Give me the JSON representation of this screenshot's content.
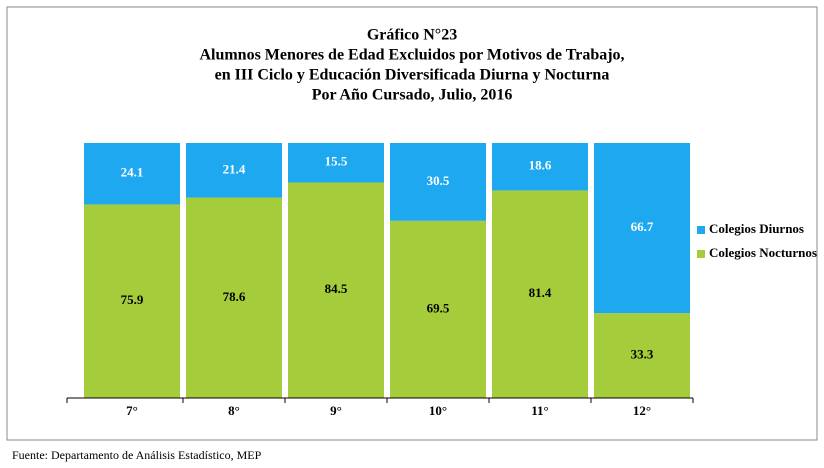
{
  "chart_data": {
    "type": "stacked_bar",
    "title": [
      "Gráfico N°23",
      "Alumnos Menores de Edad Excluidos por Motivos de Trabajo,",
      "en III Ciclo y Educación Diversificada Diurna y Nocturna",
      "Por Año Cursado, Julio, 2016"
    ],
    "categories": [
      "7°",
      "8°",
      "9°",
      "10°",
      "11°",
      "12°"
    ],
    "series": [
      {
        "name": "Colegios Nocturnos",
        "color": "#a5cd3b",
        "label_color": "#000000",
        "values": [
          75.9,
          78.6,
          84.5,
          69.5,
          81.4,
          33.3
        ]
      },
      {
        "name": "Colegios Diurnos",
        "color": "#1ea8f0",
        "label_color": "#ffffff",
        "values": [
          24.1,
          21.4,
          15.5,
          30.5,
          18.6,
          66.7
        ]
      }
    ],
    "ylim": [
      0,
      100
    ],
    "legend": "right",
    "source": "Fuente: Departamento de Análisis Estadístico, MEP"
  }
}
